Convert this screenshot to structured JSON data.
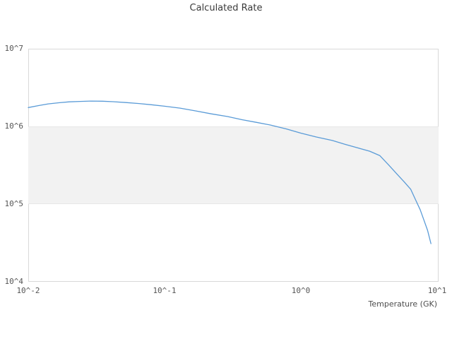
{
  "title": "Calculated Rate",
  "colors": {
    "line": "#5a9bd7",
    "band_fill": "#f2f2f2",
    "band_edge": "#e7e7e7",
    "frame_border": "#d9d9d9",
    "title_text": "#3a3a3a",
    "tick_text": "#555555"
  },
  "chart_data": {
    "type": "line",
    "title": "Calculated Rate",
    "xlabel": "Temperature (GK)",
    "ylabel": "",
    "x_scale": "log",
    "y_scale": "log",
    "xlim": [
      0.01,
      10
    ],
    "ylim": [
      10000,
      10000000
    ],
    "grid": false,
    "legend": "none",
    "x_ticks": [
      {
        "value": 0.01,
        "label": "10^-2"
      },
      {
        "value": 0.1,
        "label": "10^-1"
      },
      {
        "value": 1,
        "label": "10^0"
      },
      {
        "value": 10,
        "label": "10^1"
      }
    ],
    "y_ticks": [
      {
        "value": 10000000,
        "label": "10^7"
      },
      {
        "value": 1000000,
        "label": "10^6"
      },
      {
        "value": 100000,
        "label": "10^5"
      },
      {
        "value": 10000,
        "label": "10^4"
      }
    ],
    "band": {
      "y_from": 100000,
      "y_to": 1000000
    },
    "series": [
      {
        "name": "Calculated Rate",
        "x": [
          0.01,
          0.012,
          0.014,
          0.017,
          0.02,
          0.024,
          0.029,
          0.035,
          0.042,
          0.052,
          0.065,
          0.08,
          0.1,
          0.13,
          0.17,
          0.22,
          0.29,
          0.37,
          0.47,
          0.6,
          0.78,
          1.0,
          1.3,
          1.7,
          2.1,
          2.6,
          3.2,
          3.8,
          4.4,
          5.0,
          5.7,
          6.4,
          7.0,
          7.5,
          8.0,
          8.5,
          9.0
        ],
        "y": [
          1750000,
          1860000,
          1950000,
          2020000,
          2070000,
          2100000,
          2120000,
          2110000,
          2080000,
          2030000,
          1970000,
          1900000,
          1820000,
          1720000,
          1580000,
          1450000,
          1340000,
          1220000,
          1130000,
          1040000,
          930000,
          820000,
          730000,
          660000,
          590000,
          530000,
          480000,
          420000,
          320000,
          250000,
          195000,
          155000,
          110000,
          85000,
          62000,
          46000,
          31000
        ]
      }
    ]
  }
}
